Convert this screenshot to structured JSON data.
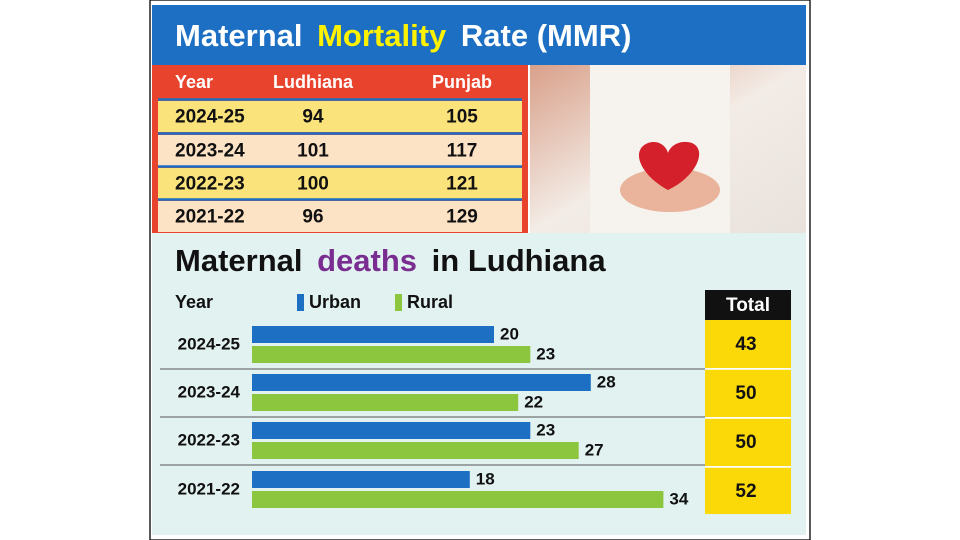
{
  "mmr_table": {
    "title": [
      "Maternal",
      "Mortality",
      "Rate (MMR)"
    ],
    "columns": [
      "Year",
      "Ludhiana",
      "Punjab"
    ],
    "rows": [
      [
        "2024-25",
        94,
        105
      ],
      [
        "2023-24",
        101,
        117
      ],
      [
        "2022-23",
        100,
        121
      ],
      [
        "2021-22",
        96,
        129
      ]
    ]
  },
  "chart_data": {
    "type": "bar",
    "orientation": "horizontal",
    "title": [
      "Maternal",
      "deaths",
      "in Ludhiana"
    ],
    "category_label": "Year",
    "categories": [
      "2024-25",
      "2023-24",
      "2022-23",
      "2021-22"
    ],
    "series": [
      {
        "name": "Urban",
        "color": "#1c6fc2",
        "values": [
          20,
          28,
          23,
          18
        ]
      },
      {
        "name": "Rural",
        "color": "#8cc63e",
        "values": [
          23,
          22,
          27,
          34
        ]
      }
    ],
    "total_label": "Total",
    "totals": [
      43,
      50,
      50,
      52
    ]
  }
}
